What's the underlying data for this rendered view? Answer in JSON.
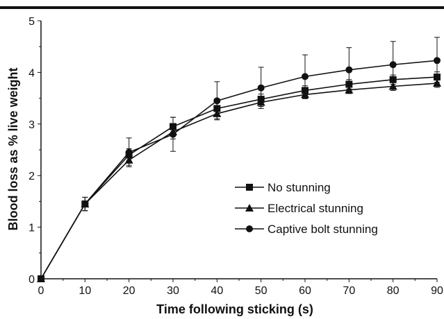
{
  "chart_data": {
    "type": "line",
    "xlabel": "Time following sticking (s)",
    "ylabel": "Blood loss as % live weight",
    "xlim": [
      0,
      90
    ],
    "ylim": [
      0,
      5
    ],
    "x_ticks": [
      "0",
      "10",
      "20",
      "30",
      "40",
      "50",
      "60",
      "70",
      "80",
      "90"
    ],
    "y_ticks": [
      "0",
      "1",
      "2",
      "3",
      "4",
      "5"
    ],
    "x": [
      0,
      10,
      20,
      30,
      40,
      50,
      60,
      70,
      80,
      90
    ],
    "grid": false,
    "legend_position": "center-right",
    "series": [
      {
        "name": "No stunning",
        "marker": "square",
        "values": [
          0,
          1.45,
          2.4,
          2.95,
          3.3,
          3.48,
          3.65,
          3.77,
          3.86,
          3.91
        ],
        "error": [
          0,
          0.13,
          0.12,
          0.18,
          0.12,
          0.1,
          0.09,
          0.09,
          0.09,
          0.1
        ]
      },
      {
        "name": "Electrical stunning",
        "marker": "triangle",
        "values": [
          0,
          1.45,
          2.3,
          2.85,
          3.2,
          3.42,
          3.57,
          3.66,
          3.73,
          3.79
        ],
        "error": [
          0,
          0.13,
          0.1,
          0.14,
          0.1,
          0.08,
          0.08,
          0.07,
          0.08,
          0.08
        ]
      },
      {
        "name": "Captive bolt stunning",
        "marker": "circle",
        "values": [
          0,
          1.45,
          2.45,
          2.8,
          3.45,
          3.7,
          3.92,
          4.05,
          4.15,
          4.23
        ],
        "error": [
          0,
          0.13,
          0.28,
          0.33,
          0.37,
          0.4,
          0.42,
          0.43,
          0.45,
          0.45
        ]
      }
    ]
  }
}
